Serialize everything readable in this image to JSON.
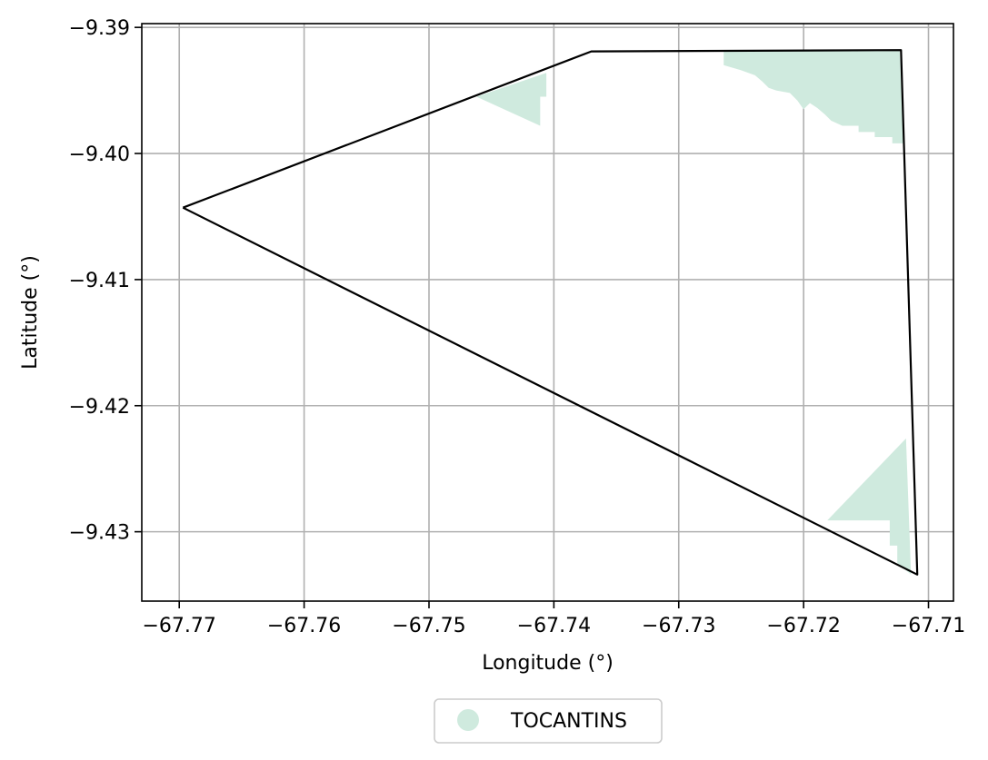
{
  "chart_data": {
    "type": "map",
    "xlabel": "Longitude (°)",
    "ylabel": "Latitude (°)",
    "xlim": [
      -67.773,
      -67.708
    ],
    "ylim": [
      -9.4355,
      -9.3897
    ],
    "x_ticks": [
      {
        "value": -67.77,
        "label": "−67.77"
      },
      {
        "value": -67.76,
        "label": "−67.76"
      },
      {
        "value": -67.75,
        "label": "−67.75"
      },
      {
        "value": -67.74,
        "label": "−67.74"
      },
      {
        "value": -67.73,
        "label": "−67.73"
      },
      {
        "value": -67.72,
        "label": "−67.72"
      },
      {
        "value": -67.71,
        "label": "−67.71"
      }
    ],
    "y_ticks": [
      {
        "value": -9.39,
        "label": "−9.39"
      },
      {
        "value": -9.4,
        "label": "−9.40"
      },
      {
        "value": -9.41,
        "label": "−9.41"
      },
      {
        "value": -9.42,
        "label": "−9.42"
      },
      {
        "value": -9.43,
        "label": "−9.43"
      }
    ],
    "grid": true,
    "boundary": {
      "color": "#000000",
      "coordinates": [
        [
          -67.7697,
          -9.4043
        ],
        [
          -67.737,
          -9.3919
        ],
        [
          -67.7122,
          -9.3918
        ],
        [
          -67.7109,
          -9.4334
        ],
        [
          -67.7697,
          -9.4043
        ]
      ]
    },
    "regions": [
      {
        "name": "TOCANTINS",
        "color": "#cfeade",
        "polygons": [
          [
            [
              -67.7462,
              -9.3955
            ],
            [
              -67.7406,
              -9.3936
            ],
            [
              -67.7406,
              -9.3955
            ],
            [
              -67.7411,
              -9.3955
            ],
            [
              -67.7411,
              -9.3978
            ]
          ],
          [
            [
              -67.7264,
              -9.3918
            ],
            [
              -67.7123,
              -9.3918
            ],
            [
              -67.712,
              -9.3992
            ],
            [
              -67.7129,
              -9.3992
            ],
            [
              -67.7129,
              -9.3987
            ],
            [
              -67.7143,
              -9.3987
            ],
            [
              -67.7143,
              -9.3983
            ],
            [
              -67.7156,
              -9.3983
            ],
            [
              -67.7156,
              -9.3978
            ],
            [
              -67.7169,
              -9.3978
            ],
            [
              -67.7178,
              -9.3974
            ],
            [
              -67.7183,
              -9.3969
            ],
            [
              -67.7189,
              -9.3964
            ],
            [
              -67.7195,
              -9.396
            ],
            [
              -67.72,
              -9.3965
            ],
            [
              -67.7205,
              -9.3958
            ],
            [
              -67.7211,
              -9.3952
            ],
            [
              -67.7222,
              -9.395
            ],
            [
              -67.7228,
              -9.3948
            ],
            [
              -67.7233,
              -9.3943
            ],
            [
              -67.7239,
              -9.3938
            ],
            [
              -67.725,
              -9.3934
            ],
            [
              -67.7264,
              -9.393
            ]
          ],
          [
            [
              -67.7118,
              -9.4226
            ],
            [
              -67.7114,
              -9.4334
            ],
            [
              -67.7125,
              -9.4325
            ],
            [
              -67.7125,
              -9.4311
            ],
            [
              -67.7131,
              -9.4311
            ],
            [
              -67.7131,
              -9.4291
            ],
            [
              -67.7181,
              -9.4291
            ]
          ]
        ]
      }
    ],
    "legend": {
      "placement": "bottom-center",
      "entries": [
        {
          "label": "TOCANTINS",
          "color": "#cfeade"
        }
      ]
    }
  }
}
